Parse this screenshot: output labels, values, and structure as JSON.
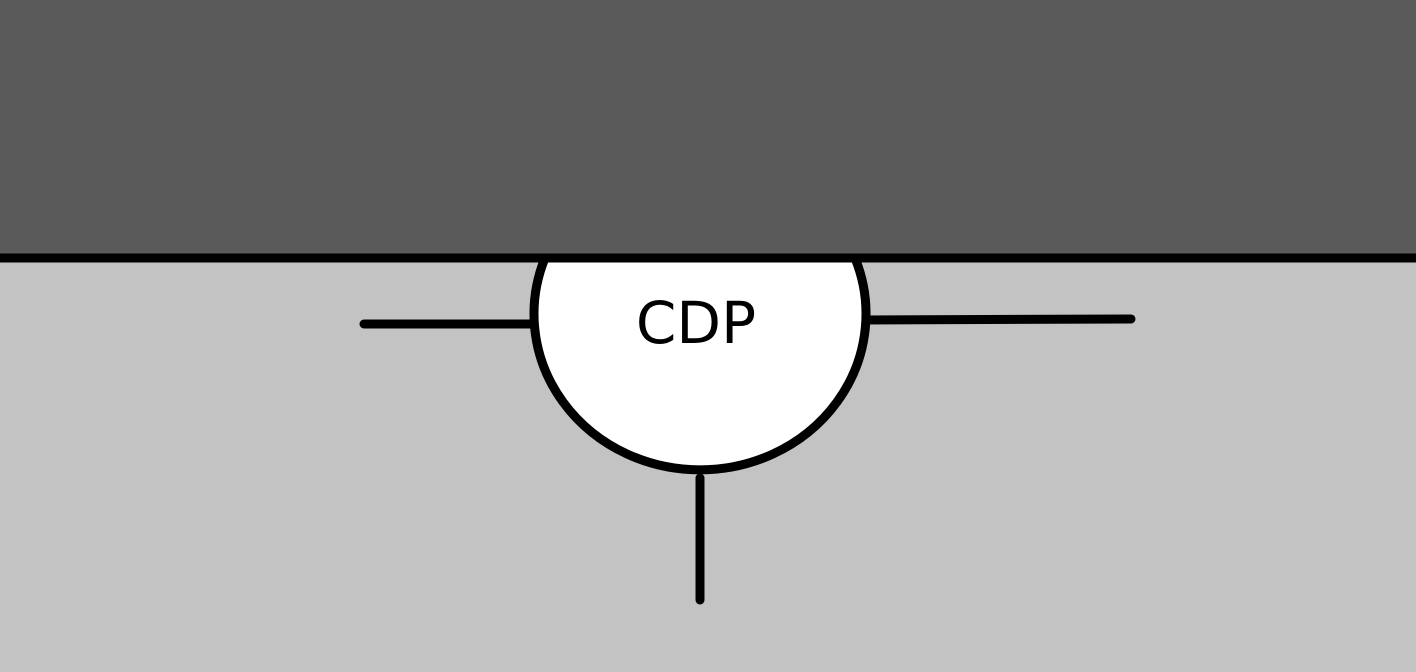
{
  "colors": {
    "upper_region": "#5a5a5a",
    "lower_region": "#c3c3c3",
    "boundary_line": "#000000",
    "node_fill": "#ffffff",
    "node_stroke": "#000000",
    "connector": "#000000"
  },
  "node": {
    "label": "CDP"
  }
}
